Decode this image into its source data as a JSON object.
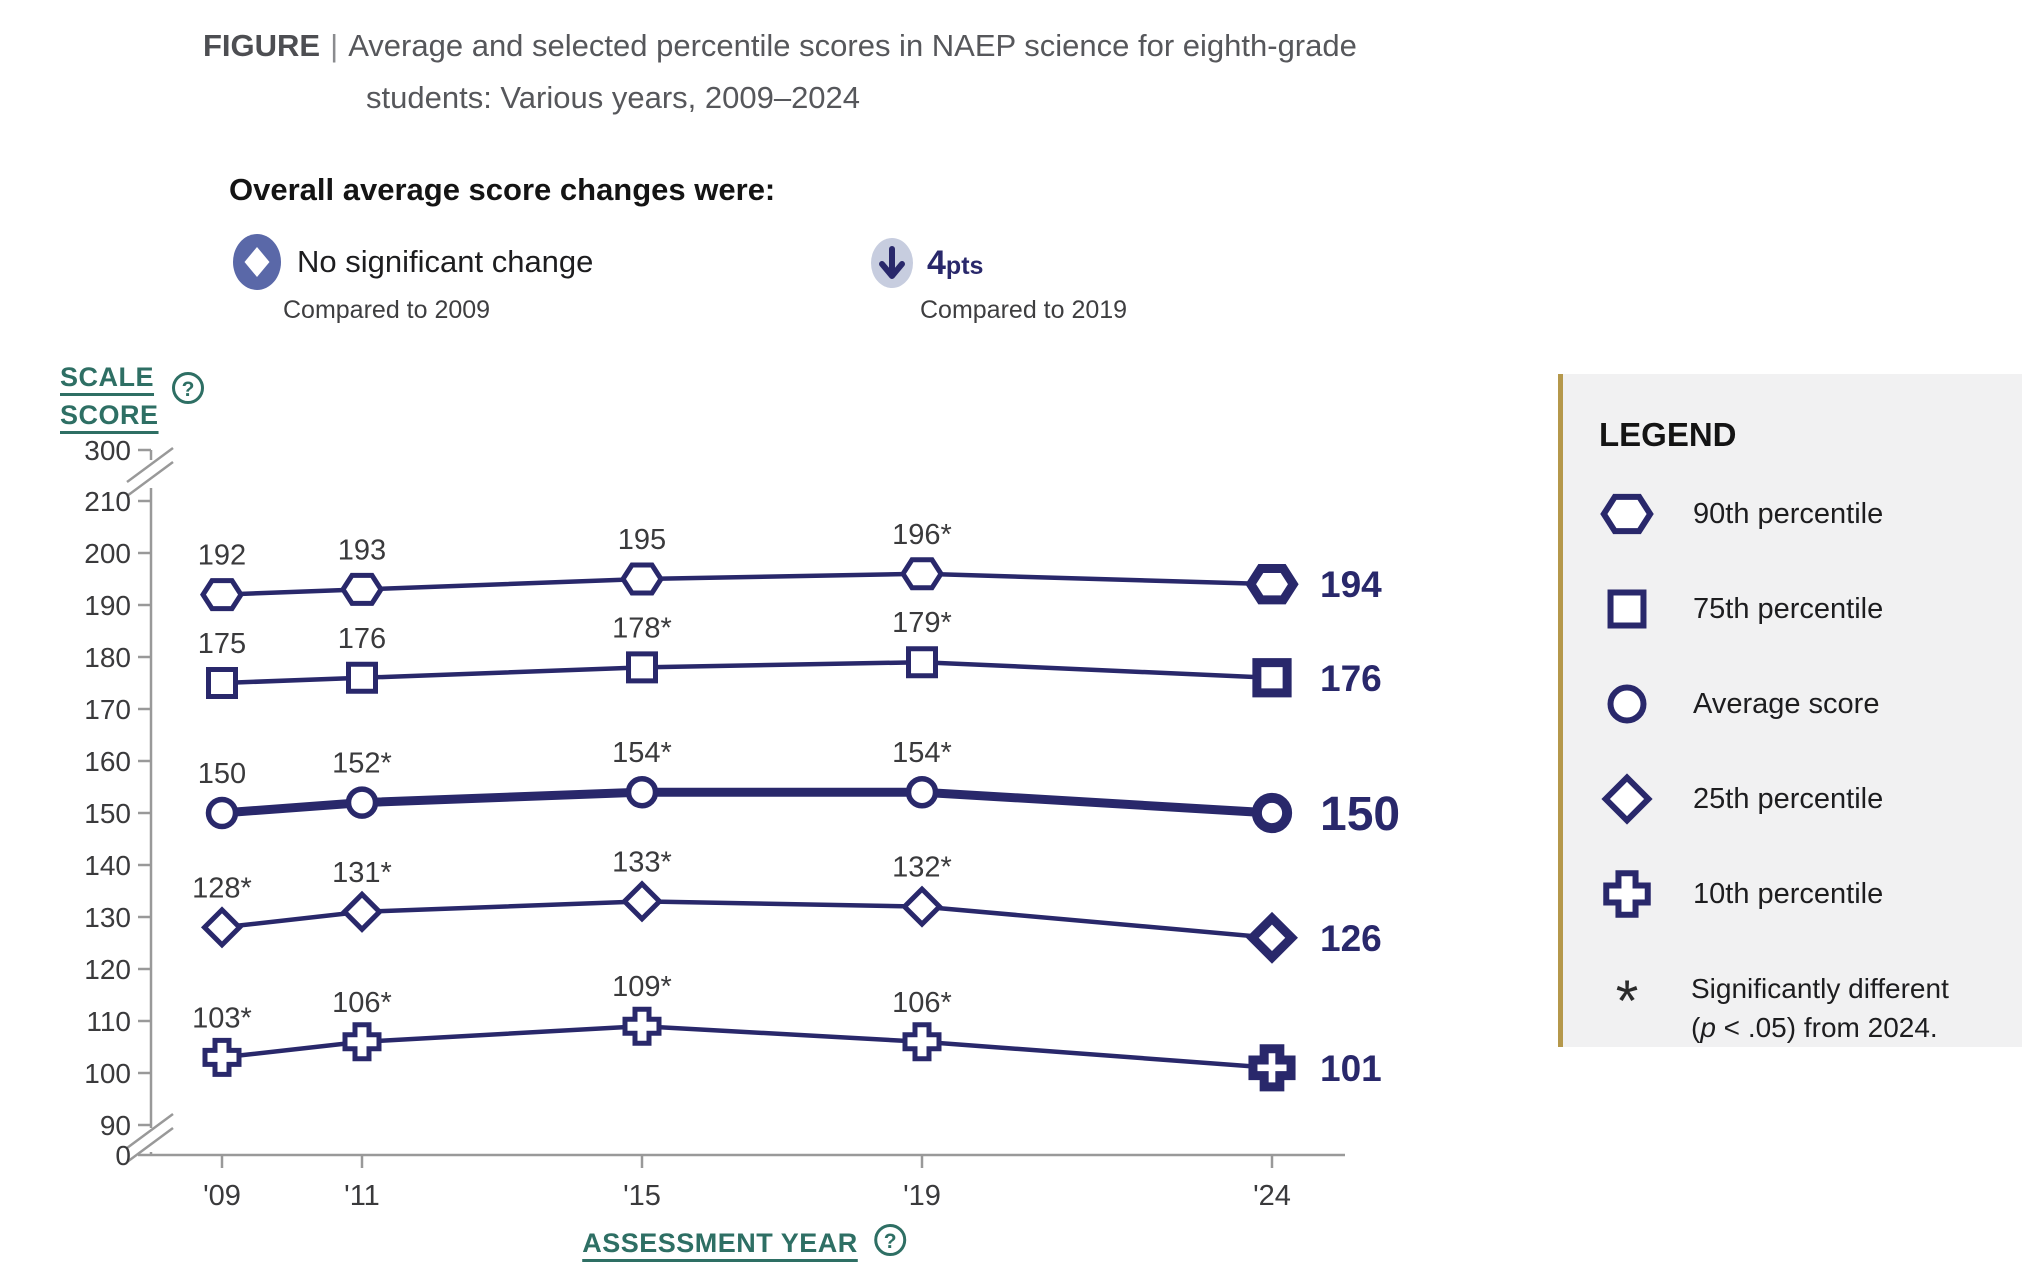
{
  "colors": {
    "navy": "#29286B",
    "teal": "#2E6F64",
    "gold": "#B5984B",
    "panel_bg": "#F1F1F2",
    "axis_gray": "#999999",
    "text_dark": "#3A3A3C",
    "title_gray": "#56575B",
    "icon_indigo": "#5A68A8",
    "icon_light": "#C7CDDF"
  },
  "icons": {
    "help": "?"
  },
  "title": {
    "prefix": "FIGURE",
    "separator": "|",
    "line1": "Average and selected percentile scores in NAEP science for eighth-grade",
    "line2": "students: Various years, 2009–2024"
  },
  "overall": {
    "heading": "Overall average score changes were:",
    "items": [
      {
        "icon": "diamond-in-ellipse",
        "label": "No significant change",
        "sub": "Compared to 2009"
      },
      {
        "icon": "down-arrow-in-ellipse",
        "value": "4",
        "unit": "pts",
        "sub": "Compared to 2019"
      }
    ]
  },
  "axes": {
    "ylabel_line1": "SCALE",
    "ylabel_line2": "SCORE",
    "xlabel": "ASSESSMENT YEAR"
  },
  "chart_data": {
    "type": "line",
    "title": "Average and selected percentile scores in NAEP science for eighth-grade students: Various years, 2009–2024",
    "xlabel": "ASSESSMENT YEAR",
    "ylabel": "SCALE SCORE",
    "x_tick_labels": [
      "'09",
      "'11",
      "'15",
      "'19",
      "'24"
    ],
    "years": [
      2009,
      2011,
      2015,
      2019,
      2024
    ],
    "y_ticks": [
      300,
      210,
      200,
      190,
      180,
      170,
      160,
      150,
      140,
      130,
      120,
      110,
      100,
      90,
      0
    ],
    "ylim": [
      0,
      300
    ],
    "axis_breaks": [
      [
        210,
        300
      ],
      [
        0,
        90
      ]
    ],
    "grid": false,
    "legend_position": "right",
    "series": [
      {
        "name": "90th percentile",
        "marker": "hexagon",
        "emphasis": false,
        "values": [
          192,
          193,
          195,
          196,
          194
        ],
        "point_labels": [
          "192",
          "193",
          "195",
          "196*"
        ],
        "end_label": "194"
      },
      {
        "name": "75th percentile",
        "marker": "square",
        "emphasis": false,
        "values": [
          175,
          176,
          178,
          179,
          176
        ],
        "point_labels": [
          "175",
          "176",
          "178*",
          "179*"
        ],
        "end_label": "176"
      },
      {
        "name": "Average score",
        "marker": "circle",
        "emphasis": true,
        "values": [
          150,
          152,
          154,
          154,
          150
        ],
        "point_labels": [
          "150",
          "152*",
          "154*",
          "154*"
        ],
        "end_label": "150"
      },
      {
        "name": "25th percentile",
        "marker": "diamond",
        "emphasis": false,
        "values": [
          128,
          131,
          133,
          132,
          126
        ],
        "point_labels": [
          "128*",
          "131*",
          "133*",
          "132*"
        ],
        "end_label": "126"
      },
      {
        "name": "10th percentile",
        "marker": "cross",
        "emphasis": false,
        "values": [
          103,
          106,
          109,
          106,
          101
        ],
        "point_labels": [
          "103*",
          "106*",
          "109*",
          "106*"
        ],
        "end_label": "101"
      }
    ]
  },
  "legend": {
    "title": "LEGEND",
    "items": [
      {
        "marker": "hexagon",
        "label": "90th percentile"
      },
      {
        "marker": "square",
        "label": "75th percentile"
      },
      {
        "marker": "circle",
        "label": "Average score"
      },
      {
        "marker": "diamond",
        "label": "25th percentile"
      },
      {
        "marker": "cross",
        "label": "10th percentile"
      }
    ],
    "note": {
      "symbol": "*",
      "line1": "Significantly different",
      "line2_pre": "(",
      "line2_italic": "p",
      "line2_post": " < .05) from 2024."
    }
  }
}
